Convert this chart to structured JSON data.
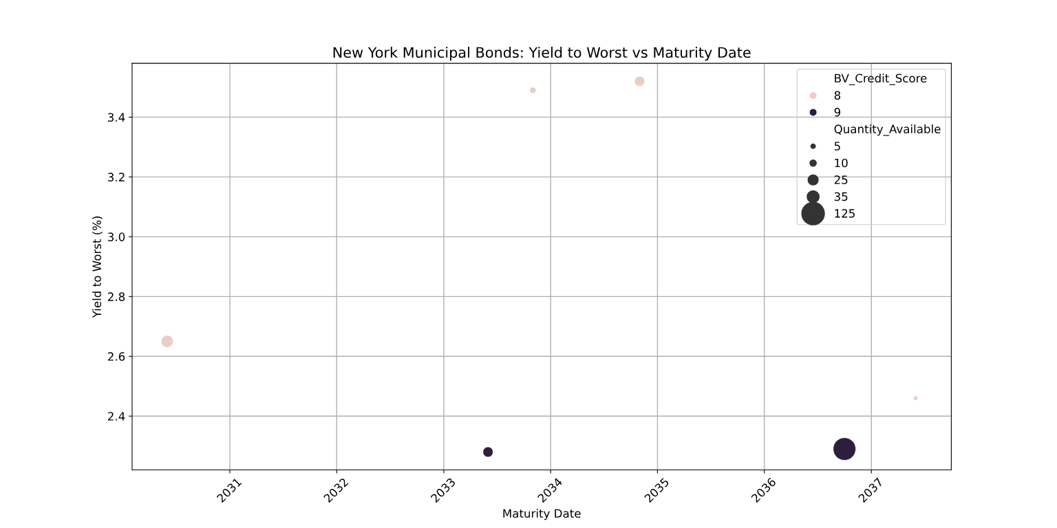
{
  "chart_data": {
    "type": "bubble",
    "title": "New York Municipal Bonds: Yield to Worst vs Maturity Date",
    "xlabel": "Maturity Date",
    "ylabel": "Yield to Worst (%)",
    "legend_title": [
      "BV_Credit_Score",
      "Quantity_Available"
    ],
    "series": [
      {
        "name": "8",
        "color": "#ebcdc6",
        "x": [
          "2030-06",
          "2033-11",
          "2034-11",
          "2037-06"
        ],
        "values": [
          2.65,
          3.49,
          3.52,
          2.46
        ],
        "sizes": [
          35,
          10,
          25,
          5
        ]
      },
      {
        "name": "9",
        "color": "#2d1e3e",
        "x": [
          "2033-06",
          "2036-10"
        ],
        "values": [
          2.28,
          2.29
        ],
        "sizes": [
          25,
          125
        ]
      }
    ],
    "size_legend": [
      5,
      10,
      25,
      35,
      125
    ],
    "xlim": [
      "2030-02",
      "2037-10"
    ],
    "xticks": [
      {
        "value": "2031",
        "label": "2031"
      },
      {
        "value": "2032",
        "label": "2032"
      },
      {
        "value": "2033",
        "label": "2033"
      },
      {
        "value": "2034",
        "label": "2034"
      },
      {
        "value": "2035",
        "label": "2035"
      },
      {
        "value": "2036",
        "label": "2036"
      },
      {
        "value": "2037",
        "label": "2037"
      }
    ],
    "ylim": [
      2.22,
      3.58
    ],
    "yticks": [
      2.4,
      2.6,
      2.8,
      {
        "value": 3.0,
        "label": "3.0"
      },
      3.2,
      3.4
    ],
    "grid": true,
    "legend": "top right"
  }
}
